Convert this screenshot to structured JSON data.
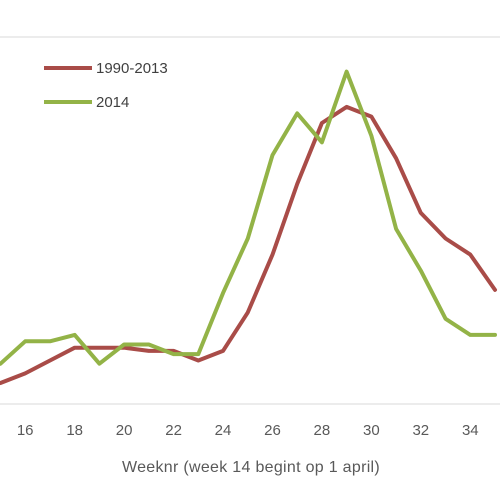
{
  "chart_data": {
    "type": "line",
    "title": "",
    "xlabel": "Weeknr (week  14 begint op 1 april)",
    "ylabel": "",
    "x": [
      15,
      16,
      17,
      18,
      19,
      20,
      21,
      22,
      23,
      24,
      25,
      26,
      27,
      28,
      29,
      30,
      31,
      32,
      33,
      34,
      35
    ],
    "xticks": [
      16,
      18,
      20,
      22,
      24,
      26,
      28,
      30,
      32,
      34
    ],
    "xlim": [
      15,
      35
    ],
    "grid": "top-horizontal-line",
    "legend_position": "top-left",
    "series": [
      {
        "name": "1990-2013",
        "color": "#A94C48",
        "values": [
          0.0,
          0.03,
          0.07,
          0.11,
          0.11,
          0.11,
          0.1,
          0.1,
          0.07,
          0.1,
          0.22,
          0.4,
          0.62,
          0.81,
          0.86,
          0.83,
          0.7,
          0.53,
          0.45,
          0.4,
          0.29
        ]
      },
      {
        "name": "2014",
        "color": "#93B347",
        "values": [
          0.06,
          0.13,
          0.13,
          0.15,
          0.06,
          0.12,
          0.12,
          0.09,
          0.09,
          0.28,
          0.45,
          0.71,
          0.84,
          0.75,
          0.97,
          0.77,
          0.48,
          0.35,
          0.2,
          0.15,
          0.15
        ]
      }
    ],
    "ylim": [
      0,
      1
    ]
  }
}
